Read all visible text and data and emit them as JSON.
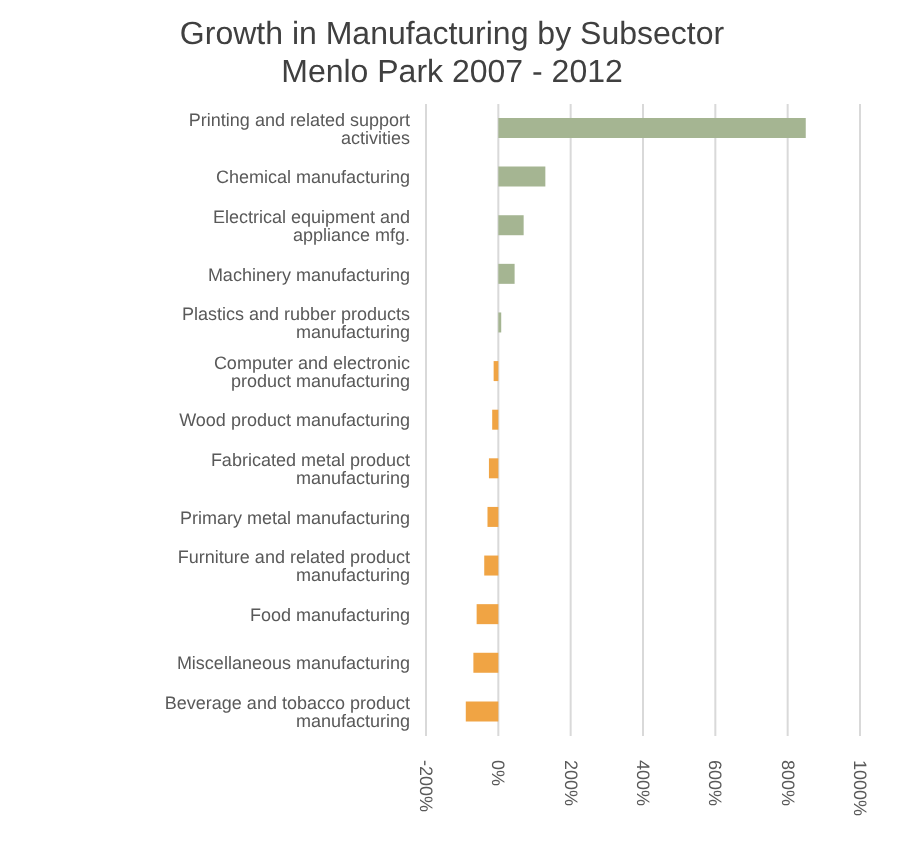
{
  "chart_data": {
    "type": "bar",
    "orientation": "horizontal",
    "title": "Growth in Manufacturing by Subsector",
    "subtitle": "Menlo Park 2007 - 2012",
    "categories": [
      "Printing and related support activities",
      "Chemical manufacturing",
      "Electrical equipment and appliance mfg.",
      "Machinery manufacturing",
      "Plastics and rubber products manufacturing",
      "Computer and electronic product manufacturing",
      "Wood product manufacturing",
      "Fabricated metal product manufacturing",
      "Primary metal manufacturing",
      "Furniture and related product manufacturing",
      "Food manufacturing",
      "Miscellaneous manufacturing",
      "Beverage and tobacco product manufacturing"
    ],
    "values": [
      850,
      130,
      70,
      45,
      8,
      -13,
      -17,
      -26,
      -30,
      -39,
      -60,
      -69,
      -90
    ],
    "colors": [
      "#a5b592",
      "#a5b592",
      "#a5b592",
      "#a5b592",
      "#a5b592",
      "#f0a444",
      "#f0a444",
      "#f0a444",
      "#f0a444",
      "#f0a444",
      "#f0a444",
      "#f0a444",
      "#f0a444"
    ],
    "xlim": [
      -200,
      1000
    ],
    "xticks": [
      {
        "value": -200,
        "label": "-200%"
      },
      {
        "value": 0,
        "label": "0%"
      },
      {
        "value": 200,
        "label": "200%"
      },
      {
        "value": 400,
        "label": "400%"
      },
      {
        "value": 600,
        "label": "600%"
      },
      {
        "value": 800,
        "label": "800%"
      },
      {
        "value": 1000,
        "label": "1000%"
      }
    ],
    "grid": "x"
  }
}
